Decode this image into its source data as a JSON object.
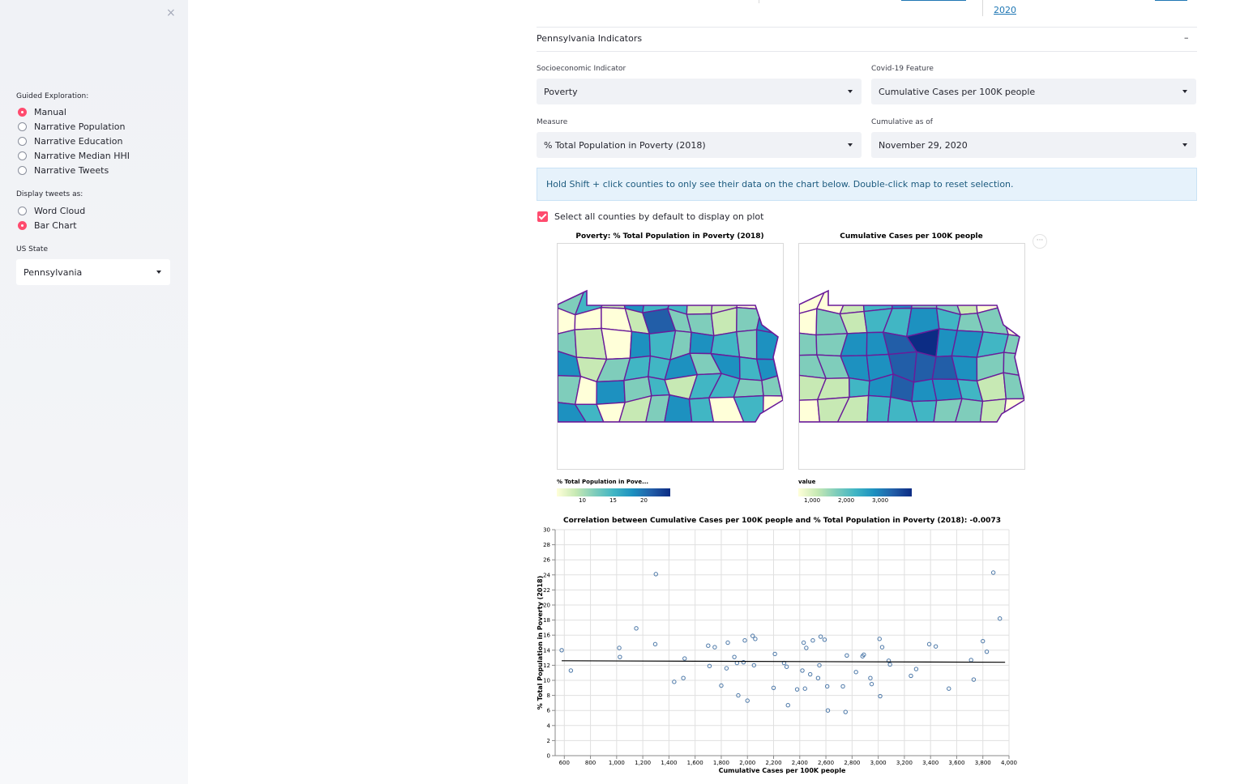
{
  "sidebar": {
    "close_glyph": "×",
    "guided_label": "Guided Exploration:",
    "guided_options": [
      {
        "label": "Manual",
        "selected": true
      },
      {
        "label": "Narrative Population",
        "selected": false
      },
      {
        "label": "Narrative Education",
        "selected": false
      },
      {
        "label": "Narrative Median HHI",
        "selected": false
      },
      {
        "label": "Narrative Tweets",
        "selected": false
      }
    ],
    "tweets_label": "Display tweets as:",
    "tweets_options": [
      {
        "label": "Word Cloud",
        "selected": false
      },
      {
        "label": "Bar Chart",
        "selected": true
      }
    ],
    "state_label": "US State",
    "state_value": "Pennsylvania"
  },
  "top_fragment": {
    "link_text": "2020"
  },
  "expander": {
    "title": "Pennsylvania Indicators",
    "toggle": "–"
  },
  "controls": {
    "socio_label": "Socioeconomic Indicator",
    "socio_value": "Poverty",
    "covid_label": "Covid-19 Feature",
    "covid_value": "Cumulative Cases per 100K people",
    "measure_label": "Measure",
    "measure_value": "% Total Population in Poverty (2018)",
    "cumulative_label": "Cumulative as of",
    "cumulative_value": "November 29, 2020"
  },
  "info_text": "Hold Shift + click counties to only see their data on the chart below. Double-click map to reset selection.",
  "checkbox_label": "Select all counties by default to display on plot",
  "maps": {
    "left_title": "Poverty: % Total Population in Poverty (2018)",
    "right_title": "Cumulative Cases per 100K people",
    "menu_glyph": "···",
    "left_legend_title": "% Total Population in Pove...",
    "left_legend_ticks": [
      "10",
      "15",
      "20"
    ],
    "right_legend_title": "value",
    "right_legend_ticks": [
      "1,000",
      "2,000",
      "3,000"
    ],
    "colorscale": [
      "#ffffd9",
      "#c7e9b4",
      "#7fcdbb",
      "#41b6c4",
      "#1d91c0",
      "#225ea8",
      "#0c2c84"
    ],
    "border_color": "#6a1b9a"
  },
  "chart_data": {
    "type": "scatter",
    "title": "Correlation between Cumulative Cases per 100K people and % Total Population in Poverty (2018): -0.0073",
    "xlabel": "Cumulative Cases per 100K people",
    "ylabel": "% Total Population in Poverty (2018)",
    "xlim": [
      530,
      4000
    ],
    "ylim": [
      0,
      30
    ],
    "xticks": [
      600,
      800,
      1000,
      1200,
      1400,
      1600,
      1800,
      2000,
      2200,
      2400,
      2600,
      2800,
      3000,
      3200,
      3400,
      3600,
      3800,
      4000
    ],
    "xtick_labels": [
      "600",
      "800",
      "1,000",
      "1,200",
      "1,400",
      "1,600",
      "1,800",
      "2,000",
      "2,200",
      "2,400",
      "2,600",
      "2,800",
      "3,000",
      "3,200",
      "3,400",
      "3,600",
      "3,800",
      "4,000"
    ],
    "yticks": [
      0,
      2,
      4,
      6,
      8,
      10,
      12,
      14,
      16,
      18,
      20,
      22,
      24,
      26,
      28,
      30
    ],
    "grid": true,
    "point_color": "#4c78a8",
    "trend_color": "#000000",
    "trend_line": [
      [
        580,
        12.6
      ],
      [
        3970,
        12.4
      ]
    ],
    "points": [
      [
        580,
        14.0
      ],
      [
        650,
        11.3
      ],
      [
        1020,
        14.3
      ],
      [
        1025,
        13.1
      ],
      [
        1150,
        16.9
      ],
      [
        1300,
        24.1
      ],
      [
        1295,
        14.8
      ],
      [
        1440,
        9.8
      ],
      [
        1510,
        10.3
      ],
      [
        1520,
        12.9
      ],
      [
        1700,
        14.6
      ],
      [
        1710,
        11.9
      ],
      [
        1750,
        14.4
      ],
      [
        1800,
        9.3
      ],
      [
        1840,
        11.6
      ],
      [
        1850,
        15.0
      ],
      [
        1900,
        13.1
      ],
      [
        1920,
        12.3
      ],
      [
        1930,
        8.0
      ],
      [
        1970,
        12.4
      ],
      [
        1980,
        15.3
      ],
      [
        2000,
        7.3
      ],
      [
        2040,
        15.9
      ],
      [
        2050,
        12.0
      ],
      [
        2060,
        15.5
      ],
      [
        2200,
        9.0
      ],
      [
        2210,
        13.5
      ],
      [
        2280,
        12.3
      ],
      [
        2300,
        11.8
      ],
      [
        2310,
        6.7
      ],
      [
        2380,
        8.8
      ],
      [
        2420,
        11.3
      ],
      [
        2430,
        15.0
      ],
      [
        2440,
        8.9
      ],
      [
        2450,
        14.3
      ],
      [
        2480,
        10.8
      ],
      [
        2500,
        15.3
      ],
      [
        2540,
        10.3
      ],
      [
        2550,
        12.0
      ],
      [
        2560,
        15.8
      ],
      [
        2590,
        15.4
      ],
      [
        2610,
        9.2
      ],
      [
        2615,
        6.0
      ],
      [
        2730,
        9.2
      ],
      [
        2750,
        5.8
      ],
      [
        2760,
        13.3
      ],
      [
        2830,
        11.1
      ],
      [
        2880,
        13.2
      ],
      [
        2890,
        13.4
      ],
      [
        2940,
        10.3
      ],
      [
        2950,
        9.5
      ],
      [
        3010,
        15.5
      ],
      [
        3015,
        7.9
      ],
      [
        3030,
        14.4
      ],
      [
        3080,
        12.6
      ],
      [
        3090,
        12.1
      ],
      [
        3250,
        10.6
      ],
      [
        3290,
        11.5
      ],
      [
        3390,
        14.8
      ],
      [
        3440,
        14.5
      ],
      [
        3540,
        8.9
      ],
      [
        3710,
        12.7
      ],
      [
        3730,
        10.1
      ],
      [
        3800,
        15.2
      ],
      [
        3830,
        13.8
      ],
      [
        3880,
        24.3
      ],
      [
        3930,
        18.2
      ]
    ]
  }
}
